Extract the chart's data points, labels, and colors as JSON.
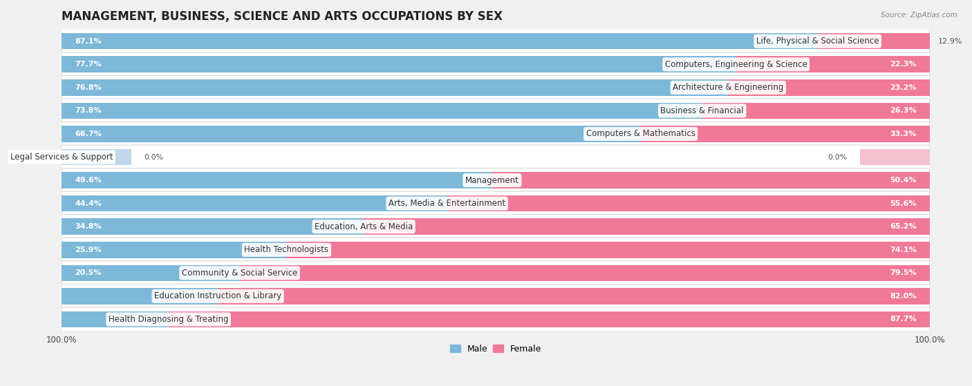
{
  "title": "MANAGEMENT, BUSINESS, SCIENCE AND ARTS OCCUPATIONS BY SEX",
  "source": "Source: ZipAtlas.com",
  "categories": [
    "Life, Physical & Social Science",
    "Computers, Engineering & Science",
    "Architecture & Engineering",
    "Business & Financial",
    "Computers & Mathematics",
    "Legal Services & Support",
    "Management",
    "Arts, Media & Entertainment",
    "Education, Arts & Media",
    "Health Technologists",
    "Community & Social Service",
    "Education Instruction & Library",
    "Health Diagnosing & Treating"
  ],
  "male": [
    87.1,
    77.7,
    76.8,
    73.8,
    66.7,
    0.0,
    49.6,
    44.4,
    34.8,
    25.9,
    20.5,
    18.0,
    12.3
  ],
  "female": [
    12.9,
    22.3,
    23.2,
    26.3,
    33.3,
    0.0,
    50.4,
    55.6,
    65.2,
    74.1,
    79.5,
    82.0,
    87.7
  ],
  "male_color": "#7db8d8",
  "female_color": "#f07898",
  "male_color_zero": "#c0d8ea",
  "female_color_zero": "#f5c0d0",
  "bg_color": "#f0f0f0",
  "row_bg_even": "#f8f8f8",
  "row_bg_odd": "#ffffff",
  "title_fontsize": 12,
  "label_fontsize": 8.5,
  "value_fontsize": 8
}
